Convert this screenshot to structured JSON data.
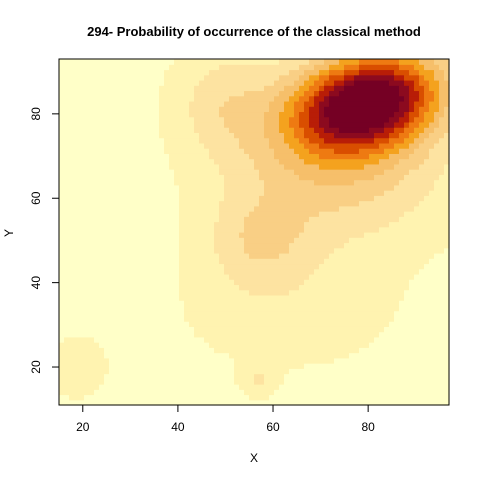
{
  "chart_data": {
    "type": "heatmap",
    "title": "294- Probability of occurrence of the classical method",
    "xlabel": "X",
    "ylabel": "Y",
    "xlim": [
      15,
      97
    ],
    "ylim": [
      11,
      93
    ],
    "x_ticks": [
      20,
      40,
      60,
      80
    ],
    "y_ticks": [
      20,
      40,
      60,
      80
    ],
    "legend": "none",
    "palette": [
      "#FFFFC8",
      "#FFF3B0",
      "#FDE3A1",
      "#F9CF85",
      "#F6BF6A",
      "#F4A21E",
      "#EE7A12",
      "#D94E00",
      "#B81D07",
      "#8C0A1F",
      "#750024"
    ],
    "hotspots": [
      {
        "x": 80,
        "y": 83,
        "peak": 10
      },
      {
        "x": 60,
        "y": 50,
        "peak": 2
      },
      {
        "x": 57,
        "y": 17,
        "peak": 1
      },
      {
        "x": 20,
        "y": 22,
        "peak": 1
      }
    ]
  }
}
